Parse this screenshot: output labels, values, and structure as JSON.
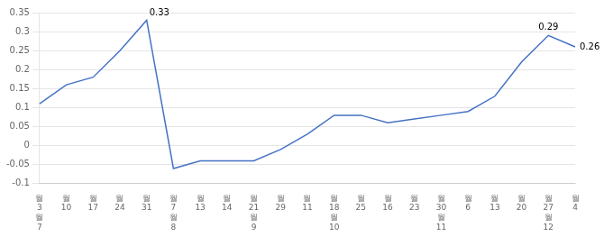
{
  "chart_data": {
    "type": "line",
    "categories": [
      "월\n3\n월\n7",
      "월\n10",
      "월\n17",
      "월\n24",
      "월\n31",
      "월\n7\n월\n8",
      "월\n13",
      "월\n14",
      "월\n21\n월\n9",
      "월\n29",
      "월\n11",
      "월\n18\n월\n10",
      "월\n25",
      "월\n16",
      "월\n23",
      "월\n30\n월\n11",
      "월\n6",
      "월\n13",
      "월\n20",
      "월\n27\n월\n12",
      "월\n4"
    ],
    "values": [
      0.11,
      0.16,
      0.18,
      0.25,
      0.33,
      -0.06,
      -0.04,
      -0.04,
      -0.04,
      -0.01,
      0.03,
      0.08,
      0.08,
      0.06,
      0.07,
      0.08,
      0.09,
      0.13,
      0.22,
      0.29,
      0.26
    ],
    "color": "#4472C4",
    "marker": "none",
    "annotations": [
      {
        "index": 4,
        "value": 0.33,
        "text": "0.33"
      },
      {
        "index": 19,
        "value": 0.29,
        "text": "0.29"
      },
      {
        "index": 20,
        "value": 0.26,
        "text": "0.26"
      }
    ],
    "ylim": [
      -0.1,
      0.35
    ],
    "yticks": [
      -0.1,
      -0.05,
      0,
      0.05,
      0.1,
      0.15,
      0.2,
      0.25,
      0.3,
      0.35
    ],
    "grid": "y"
  }
}
